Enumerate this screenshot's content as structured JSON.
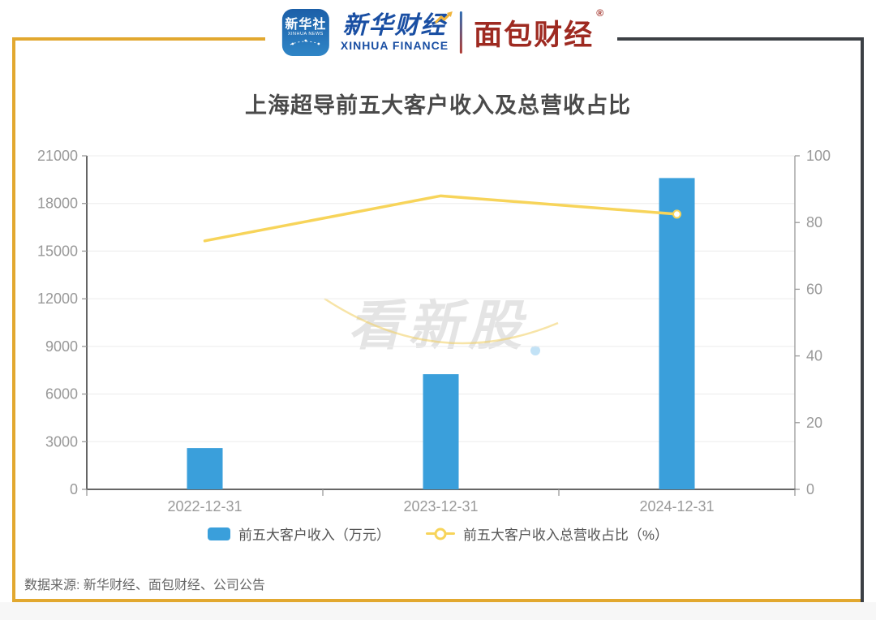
{
  "header": {
    "news_icon": {
      "title": "新华社",
      "subtitle": "XINHUA NEWS"
    },
    "finance_logo": {
      "cn": "新华财经",
      "en": "XINHUA FINANCE"
    },
    "bread_logo": {
      "cn": "面包财经",
      "reg": "®"
    }
  },
  "title": "上海超导前五大客户收入及总营收占比",
  "watermark": "看新股",
  "footer": "数据来源: 新华财经、面包财经、公司公告",
  "colors": {
    "bar": "#3A9FDB",
    "line": "#F7D45A",
    "frame_gold": "#E2A82F",
    "frame_dark": "#3C4045",
    "xinhua_blue": "#1A4FA3",
    "bread_red": "#9E2A21",
    "axis_label": "#999999",
    "grid": "#ECECEC",
    "axis_line_dark": "#666666",
    "axis_line_light": "#999999",
    "title_text": "#4A4A4A",
    "legend_text": "#555555",
    "footer_text": "#666666"
  },
  "chart_data": {
    "type": "bar+line",
    "title": "上海超导前五大客户收入及总营收占比",
    "categories": [
      "2022-12-31",
      "2023-12-31",
      "2024-12-31"
    ],
    "series": [
      {
        "name": "前五大客户收入（万元）",
        "type": "bar",
        "y_axis": "left",
        "color": "#3A9FDB",
        "values": [
          2600,
          7250,
          19600
        ]
      },
      {
        "name": "前五大客户收入总营收占比（%）",
        "type": "line",
        "y_axis": "right",
        "color": "#F7D45A",
        "values": [
          74.5,
          88,
          82.5
        ]
      }
    ],
    "left_axis": {
      "min": 0,
      "max": 21000,
      "step": 3000,
      "tick_labels": [
        "0",
        "3000",
        "6000",
        "9000",
        "12000",
        "15000",
        "18000",
        "21000"
      ]
    },
    "right_axis": {
      "min": 0,
      "max": 100,
      "step": 20,
      "tick_labels": [
        "0",
        "20",
        "40",
        "60",
        "80",
        "100"
      ]
    },
    "grid": "horizontal",
    "legend_position": "bottom"
  }
}
